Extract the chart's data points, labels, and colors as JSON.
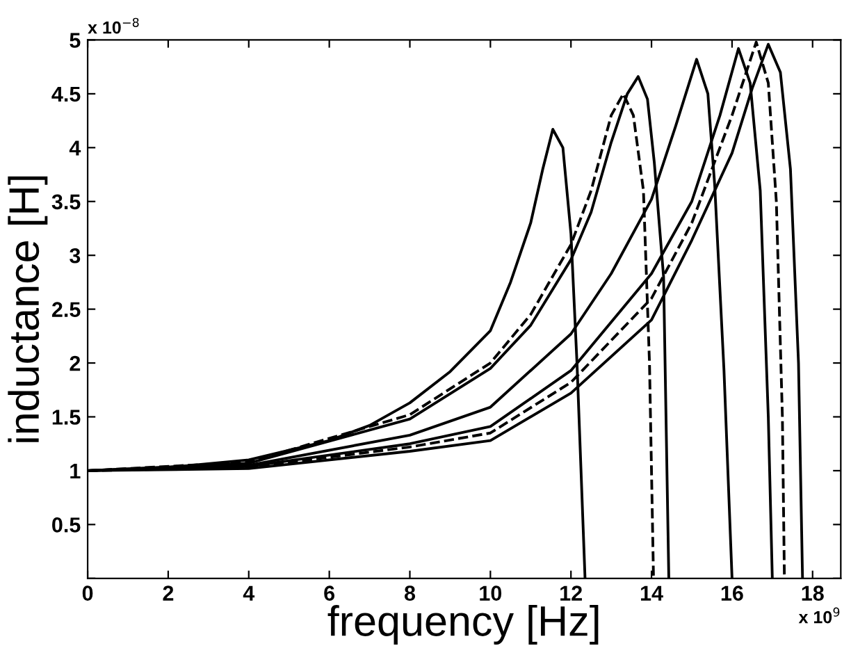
{
  "chart_data": {
    "type": "line",
    "xlabel": "frequency [Hz]",
    "ylabel": "inductance [H]",
    "annotations": [
      "x 10$^{−8}$",
      "x 10$^{9}$"
    ],
    "xlim": [
      0,
      18.7
    ],
    "xticks": [
      0,
      2,
      4,
      6,
      8,
      10,
      12,
      14,
      16,
      18
    ],
    "ylim": [
      0,
      5
    ],
    "yticks": [
      {
        "value": 0,
        "label": null
      },
      0.5,
      1,
      1.5,
      2,
      2.5,
      3,
      3.5,
      4,
      4.5,
      5
    ],
    "grid": false,
    "marker": "none",
    "series": [
      {
        "color": "#000000",
        "line_style": "solid",
        "x": [
          0,
          2,
          4,
          6,
          7,
          8,
          9,
          10,
          10.5,
          11,
          11.3,
          11.55,
          11.8,
          12.0,
          12.15,
          12.3,
          12.35
        ],
        "values": [
          1.0,
          1.03,
          1.1,
          1.28,
          1.42,
          1.63,
          1.92,
          2.3,
          2.75,
          3.3,
          3.8,
          4.17,
          4.0,
          3.2,
          2.0,
          0.5,
          0
        ]
      },
      {
        "color": "#000000",
        "line_style": "dashed",
        "x": [
          0,
          4,
          8,
          10,
          11,
          12,
          12.5,
          13,
          13.3,
          13.55,
          13.8,
          13.95,
          14.05
        ],
        "values": [
          1.0,
          1.08,
          1.52,
          2.0,
          2.45,
          3.1,
          3.6,
          4.3,
          4.5,
          4.3,
          3.6,
          2.0,
          0
        ]
      },
      {
        "color": "#000000",
        "line_style": "solid",
        "x": [
          0,
          4,
          8,
          10,
          11,
          12,
          12.5,
          13,
          13.4,
          13.67,
          13.9,
          14.07,
          14.3,
          14.43
        ],
        "values": [
          1.0,
          1.07,
          1.48,
          1.95,
          2.35,
          2.96,
          3.4,
          4.05,
          4.5,
          4.66,
          4.45,
          3.86,
          2.8,
          0
        ]
      },
      {
        "color": "#000000",
        "line_style": "solid",
        "x": [
          0,
          4,
          8,
          10,
          12,
          13,
          14,
          14.6,
          15.12,
          15.4,
          15.57,
          15.8,
          16.0
        ],
        "values": [
          1.0,
          1.05,
          1.33,
          1.59,
          2.27,
          2.83,
          3.52,
          4.2,
          4.82,
          4.5,
          3.65,
          1.93,
          0
        ]
      },
      {
        "color": "#000000",
        "line_style": "solid",
        "x": [
          0,
          4,
          8,
          10,
          12,
          14,
          15,
          15.7,
          16.16,
          16.45,
          16.7,
          16.9,
          17.0
        ],
        "values": [
          1.0,
          1.04,
          1.25,
          1.41,
          1.93,
          2.83,
          3.5,
          4.3,
          4.92,
          4.6,
          3.6,
          1.5,
          0
        ]
      },
      {
        "color": "#000000",
        "line_style": "dashed",
        "x": [
          0,
          4,
          8,
          10,
          12,
          14,
          15,
          16,
          16.6,
          16.9,
          17.1,
          17.25,
          17.3
        ],
        "values": [
          1.0,
          1.03,
          1.22,
          1.35,
          1.82,
          2.6,
          3.3,
          4.3,
          4.98,
          4.6,
          3.5,
          1.5,
          0
        ]
      },
      {
        "color": "#000000",
        "line_style": "solid",
        "x": [
          0,
          4,
          8,
          10,
          12,
          14,
          15,
          16,
          16.5,
          16.9,
          17.2,
          17.45,
          17.65,
          17.75
        ],
        "values": [
          1.0,
          1.02,
          1.18,
          1.28,
          1.72,
          2.4,
          3.14,
          3.95,
          4.55,
          4.96,
          4.7,
          3.8,
          2.0,
          0
        ]
      }
    ]
  }
}
